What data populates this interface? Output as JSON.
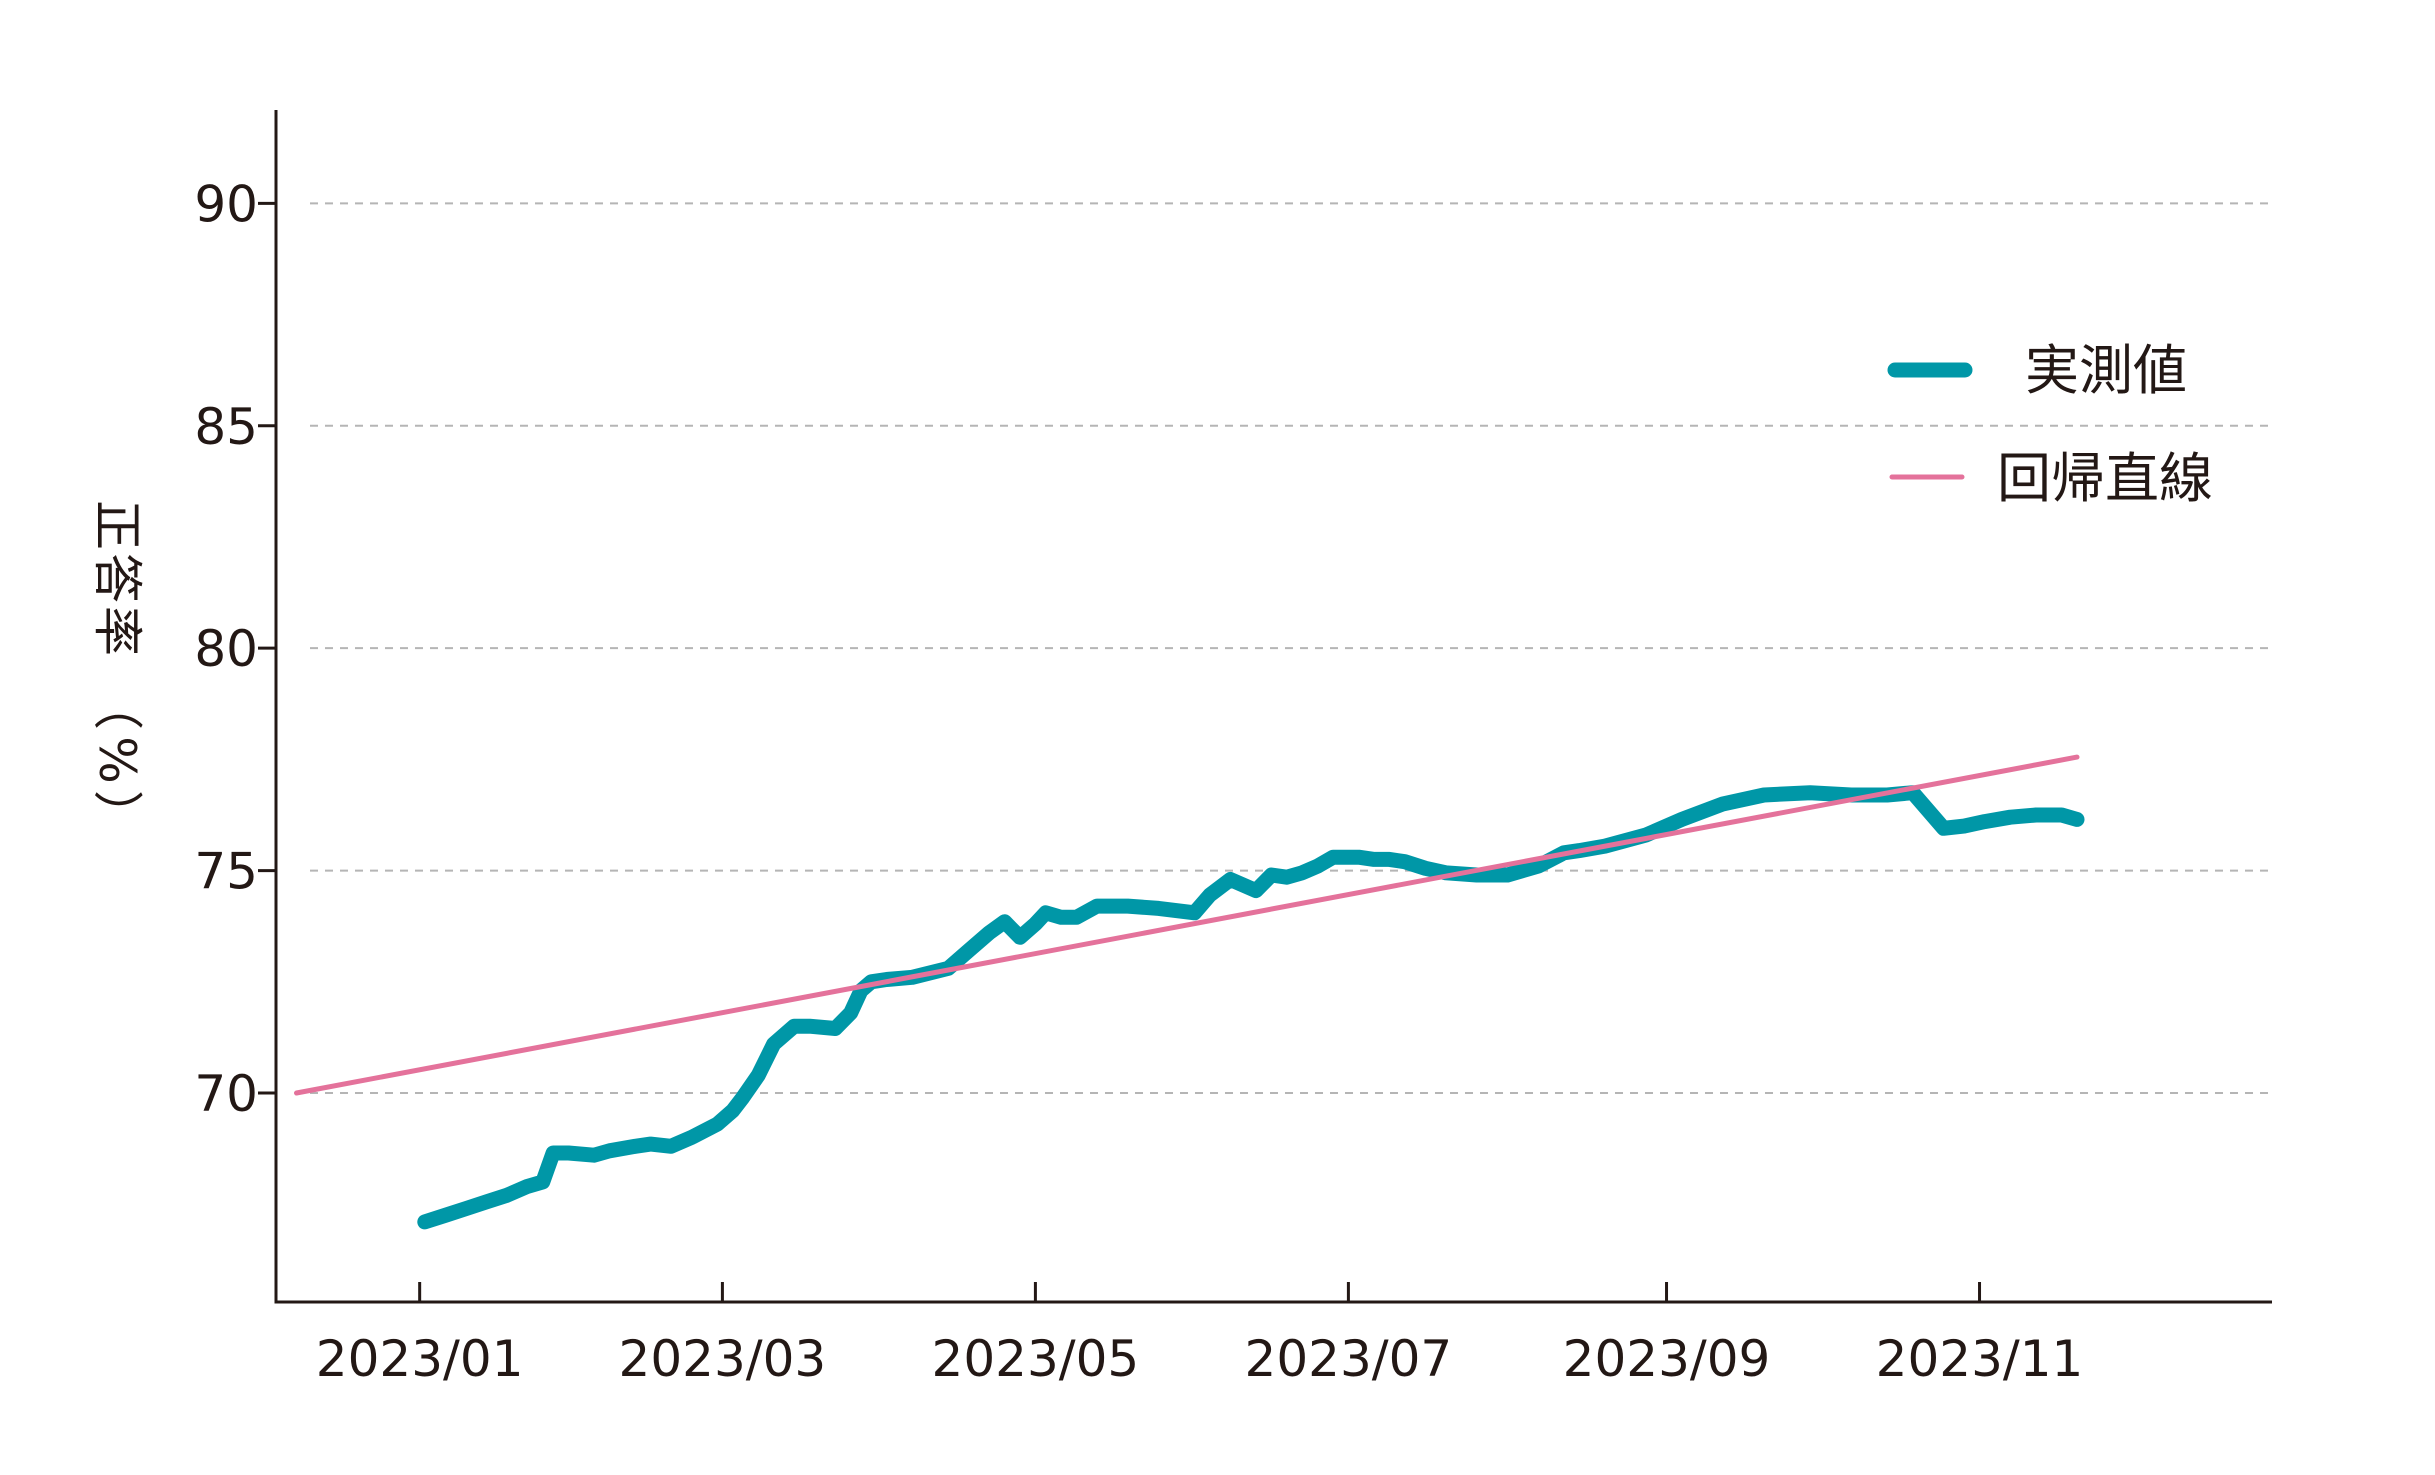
{
  "chart_data": {
    "type": "line",
    "title": "",
    "xlabel": "",
    "ylabel": "正答率（%）",
    "ylim": [
      65.3,
      92.1
    ],
    "xlim": [
      "2022-12-04",
      "2023-12-28"
    ],
    "x_ticks": [
      "2023-01-01",
      "2023-03-01",
      "2023-05-01",
      "2023-07-01",
      "2023-09-01",
      "2023-11-01"
    ],
    "x_tick_labels": [
      "2023/01",
      "2023/03",
      "2023/05",
      "2023/07",
      "2023/09",
      "2023/11"
    ],
    "y_ticks": [
      70,
      75,
      80,
      85,
      90
    ],
    "y_tick_labels": [
      "70",
      "75",
      "80",
      "85",
      "90"
    ],
    "grid": "horizontal dashed",
    "legend_position": "top-right",
    "colors": {
      "axis": "#231815",
      "grid": "#b5b5b5",
      "measured": "#0097a7",
      "regression": "#e4729b"
    },
    "series": [
      {
        "name": "実測値",
        "kind": "line",
        "x": [
          "2023-01-02",
          "2023-01-06",
          "2023-01-10",
          "2023-01-14",
          "2023-01-18",
          "2023-01-22",
          "2023-01-25",
          "2023-01-27",
          "2023-01-30",
          "2023-02-04",
          "2023-02-07",
          "2023-02-12",
          "2023-02-15",
          "2023-02-19",
          "2023-02-23",
          "2023-02-28",
          "2023-03-03",
          "2023-03-05",
          "2023-03-08",
          "2023-03-11",
          "2023-03-15",
          "2023-03-18",
          "2023-03-23",
          "2023-03-26",
          "2023-03-28",
          "2023-03-30",
          "2023-04-02",
          "2023-04-07",
          "2023-04-14",
          "2023-04-18",
          "2023-04-22",
          "2023-04-25",
          "2023-04-28",
          "2023-05-01",
          "2023-05-03",
          "2023-05-06",
          "2023-05-09",
          "2023-05-13",
          "2023-05-16",
          "2023-05-19",
          "2023-05-25",
          "2023-06-01",
          "2023-06-04",
          "2023-06-08",
          "2023-06-13",
          "2023-06-16",
          "2023-06-19",
          "2023-06-22",
          "2023-06-25",
          "2023-06-28",
          "2023-07-03",
          "2023-07-06",
          "2023-07-09",
          "2023-07-12",
          "2023-07-16",
          "2023-07-20",
          "2023-07-26",
          "2023-08-01",
          "2023-08-07",
          "2023-08-12",
          "2023-08-15",
          "2023-08-20",
          "2023-08-28",
          "2023-09-04",
          "2023-09-12",
          "2023-09-20",
          "2023-09-29",
          "2023-10-07",
          "2023-10-14",
          "2023-10-19",
          "2023-10-25",
          "2023-10-29",
          "2023-11-02",
          "2023-11-07",
          "2023-11-12",
          "2023-11-17",
          "2023-11-20"
        ],
        "y": [
          67.1,
          67.25,
          67.4,
          67.55,
          67.7,
          67.9,
          68.0,
          68.65,
          68.65,
          68.6,
          68.7,
          68.8,
          68.85,
          68.8,
          69.0,
          69.3,
          69.6,
          69.9,
          70.4,
          71.1,
          71.5,
          71.5,
          71.45,
          71.8,
          72.3,
          72.5,
          72.55,
          72.6,
          72.8,
          73.2,
          73.6,
          73.85,
          73.5,
          73.8,
          74.05,
          73.95,
          73.95,
          74.2,
          74.2,
          74.2,
          74.15,
          74.05,
          74.45,
          74.8,
          74.55,
          74.9,
          74.85,
          74.95,
          75.1,
          75.3,
          75.3,
          75.25,
          75.25,
          75.2,
          75.05,
          74.95,
          74.9,
          74.9,
          75.1,
          75.4,
          75.45,
          75.55,
          75.8,
          76.15,
          76.5,
          76.7,
          76.75,
          76.7,
          76.7,
          76.75,
          75.95,
          76.0,
          76.1,
          76.2,
          76.25,
          76.25,
          76.15
        ]
      },
      {
        "name": "回帰直線",
        "kind": "line",
        "x": [
          "2022-12-08",
          "2023-11-20"
        ],
        "y": [
          70.0,
          77.55
        ]
      }
    ]
  }
}
